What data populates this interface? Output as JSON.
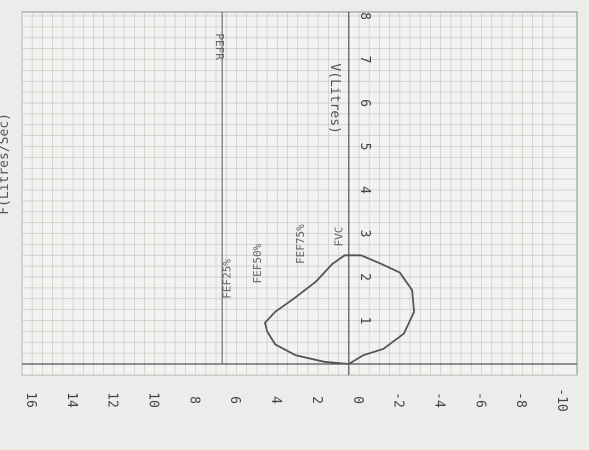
{
  "chart_data": {
    "type": "line",
    "title": "",
    "xlabel": "V(Litres)",
    "ylabel": "F(Litres/Sec)",
    "xlim": [
      0,
      8
    ],
    "ylim": [
      -10,
      16
    ],
    "x_ticks": [
      "1",
      "2",
      "3",
      "4",
      "5",
      "6",
      "7",
      "8"
    ],
    "y_ticks": [
      "16",
      "14",
      "12",
      "10",
      "8",
      "6",
      "4",
      "2",
      "0",
      "-2",
      "-4",
      "-6",
      "-8",
      "-10"
    ],
    "grid": true,
    "pefr": {
      "label": "PEFR",
      "y": 6.2
    },
    "annotations": [
      {
        "text": "FEF25%",
        "x": 1.5,
        "y": 5.8
      },
      {
        "text": "FEF50%",
        "x": 1.85,
        "y": 4.3
      },
      {
        "text": "FEF75%",
        "x": 2.3,
        "y": 2.2
      },
      {
        "text": "FVC",
        "x": 2.7,
        "y": 0.3
      }
    ],
    "series": [
      {
        "values": [
          [
            0,
            0
          ],
          [
            0.05,
            1.2
          ],
          [
            0.2,
            2.6
          ],
          [
            0.45,
            3.6
          ],
          [
            0.75,
            4.0
          ],
          [
            0.95,
            4.1
          ],
          [
            1.2,
            3.6
          ],
          [
            1.5,
            2.7
          ],
          [
            1.9,
            1.6
          ],
          [
            2.3,
            0.8
          ],
          [
            2.5,
            0.2
          ],
          [
            2.5,
            -0.6
          ],
          [
            2.3,
            -1.6
          ],
          [
            2.1,
            -2.5
          ],
          [
            1.7,
            -3.1
          ],
          [
            1.2,
            -3.2
          ],
          [
            0.7,
            -2.7
          ],
          [
            0.35,
            -1.7
          ],
          [
            0.2,
            -0.7
          ],
          [
            0,
            0
          ]
        ]
      }
    ]
  }
}
